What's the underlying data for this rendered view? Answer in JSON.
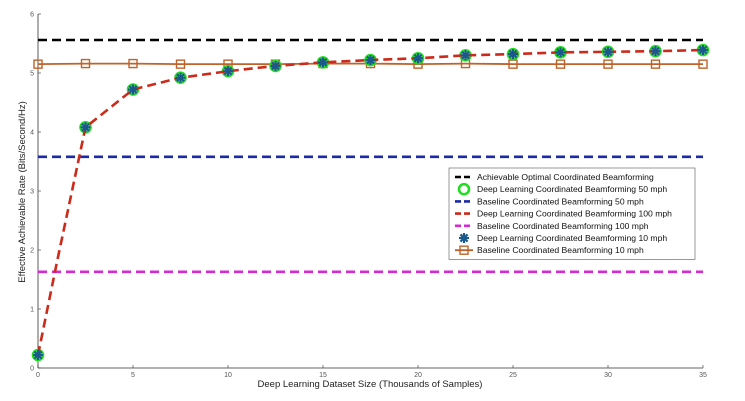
{
  "chart_data": {
    "type": "line",
    "xlabel": "Deep Learning Dataset Size (Thousands of Samples)",
    "ylabel": "Effective Achievable Rate (Bits/Second/Hz)",
    "xlim": [
      0,
      35
    ],
    "ylim": [
      0,
      6
    ],
    "xticks": [
      "0",
      "5",
      "10",
      "15",
      "20",
      "25",
      "30",
      "35"
    ],
    "yticks": [
      "0",
      "1",
      "2",
      "3",
      "4",
      "5",
      "6"
    ],
    "grid": false,
    "legend_position": "right",
    "series": [
      {
        "name": "Achievable Optimal Coordinated Beamforming",
        "color": "#000000",
        "line": "dashed",
        "marker": "none",
        "x": [
          0,
          35
        ],
        "y": [
          5.56,
          5.56
        ]
      },
      {
        "name": "Deep Learning Coordinated Beamforming 50 mph",
        "color": "#22dd22",
        "line": "none",
        "marker": "circle",
        "x": [
          0,
          2.5,
          5,
          7.5,
          10,
          12.5,
          15,
          17.5,
          20,
          22.5,
          25,
          27.5,
          30,
          32.5,
          35
        ],
        "y": [
          0.22,
          4.08,
          4.72,
          4.92,
          5.03,
          5.12,
          5.18,
          5.22,
          5.25,
          5.3,
          5.32,
          5.35,
          5.36,
          5.37,
          5.39
        ]
      },
      {
        "name": "Baseline Coordinated Beamforming 50 mph",
        "color": "#1a2aa8",
        "line": "dashed",
        "marker": "none",
        "x": [
          0,
          35
        ],
        "y": [
          3.58,
          3.58
        ]
      },
      {
        "name": "Deep Learning Coordinated Beamforming 100 mph",
        "color": "#cc2a1a",
        "line": "dashed",
        "marker": "none",
        "x": [
          0,
          1,
          2.5,
          5,
          7.5,
          10,
          12.5,
          15,
          17.5,
          20,
          22.5,
          25,
          27.5,
          30,
          32.5,
          35
        ],
        "y": [
          0.22,
          1.8,
          4.08,
          4.72,
          4.92,
          5.03,
          5.12,
          5.18,
          5.22,
          5.25,
          5.3,
          5.32,
          5.35,
          5.36,
          5.37,
          5.39
        ]
      },
      {
        "name": "Baseline Coordinated Beamforming 100 mph",
        "color": "#d42ad4",
        "line": "dashed",
        "marker": "none",
        "x": [
          0,
          35
        ],
        "y": [
          1.63,
          1.63
        ]
      },
      {
        "name": "Deep Learning Coordinated Beamforming 10 mph",
        "color": "#1a5a8a",
        "line": "none",
        "marker": "star",
        "x": [
          0,
          2.5,
          5,
          7.5,
          10,
          12.5,
          15,
          17.5,
          20,
          22.5,
          25,
          27.5,
          30,
          32.5,
          35
        ],
        "y": [
          0.22,
          4.08,
          4.72,
          4.92,
          5.03,
          5.12,
          5.18,
          5.22,
          5.25,
          5.3,
          5.32,
          5.35,
          5.36,
          5.37,
          5.39
        ]
      },
      {
        "name": "Baseline Coordinated Beamforming 10 mph",
        "color": "#c0622a",
        "line": "solid",
        "marker": "square",
        "x": [
          0,
          2.5,
          5,
          7.5,
          10,
          12.5,
          15,
          17.5,
          20,
          22.5,
          25,
          27.5,
          30,
          32.5,
          35
        ],
        "y": [
          5.15,
          5.16,
          5.16,
          5.15,
          5.15,
          5.15,
          5.16,
          5.16,
          5.15,
          5.16,
          5.15,
          5.15,
          5.15,
          5.15,
          5.15
        ]
      }
    ]
  }
}
